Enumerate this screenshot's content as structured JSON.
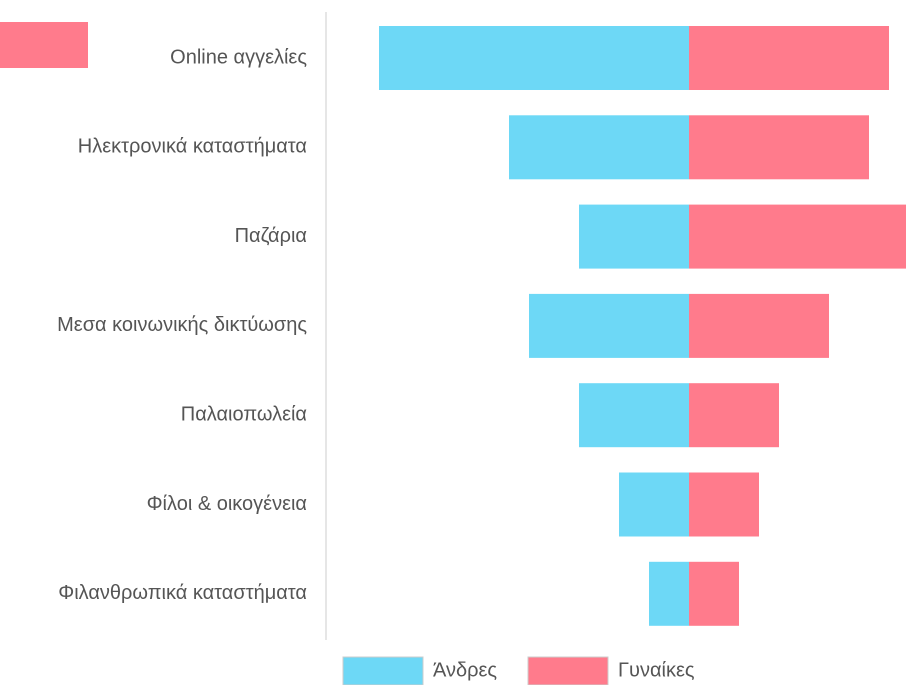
{
  "chart_data": {
    "type": "butterfly",
    "categories": [
      "Online αγγελίες",
      "Ηλεκτρονικά καταστήματα",
      "Παζάρια",
      "Μεσα κοινωνικής δικτύωσης",
      "Παλαιοπωλεία",
      "Φίλοι & οικογένεια",
      "Φιλανθρωπικά καταστήματα"
    ],
    "series": [
      {
        "name": "Άνδρες",
        "color": "#6dd8f6",
        "values": [
          31,
          18,
          11,
          16,
          11,
          7,
          4
        ]
      },
      {
        "name": "Γυναίκες",
        "color": "#ff7b8c",
        "values": [
          20,
          18,
          22,
          14,
          9,
          7,
          5
        ]
      }
    ]
  }
}
